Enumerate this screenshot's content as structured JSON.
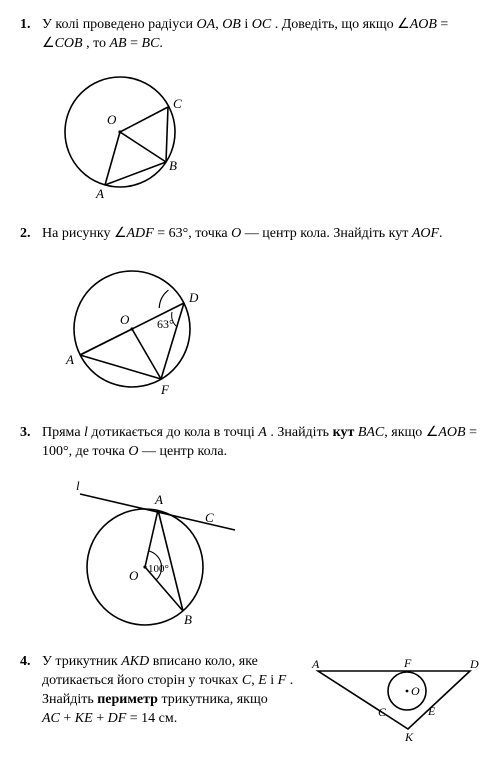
{
  "problems": [
    {
      "num": "1.",
      "text": "У колі проведено радіуси <i>OA</i>, <i>OB</i> і <i>OC</i> . Доведіть, що якщо ∠<i>AOB</i> = ∠<i>COB</i> , то <i>AB</i> = <i>BC</i>."
    },
    {
      "num": "2.",
      "text": "На рисунку ∠<i>ADF</i> = 63°, точка <i>O</i> — центр кола. Знайдіть кут <i>AOF</i>."
    },
    {
      "num": "3.",
      "text": "Пряма <i>l</i> дотикається до кола в точці <i>A</i> . Знайдіть <b>кут</b> <i>BAC</i>, якщо ∠<i>AOB</i> = 100°, де точка <i>O</i> — центр кола."
    },
    {
      "num": "4.",
      "text": "У трикутник <i>AKD</i> вписано коло, яке дотикається його сторін у точках <i>C</i>, <i>E</i> і <i>F</i> . Знайдіть <b>периметр</b> трикутника, якщо<br><i>AC</i> + <i>KE</i> + <i>DF</i> = 14 см."
    }
  ],
  "fig1": {
    "O": "O",
    "A": "A",
    "B": "B",
    "C": "C"
  },
  "fig2": {
    "O": "O",
    "A": "A",
    "D": "D",
    "F": "F",
    "angle": "63°"
  },
  "fig3": {
    "l": "l",
    "A": "A",
    "B": "B",
    "C": "C",
    "O": "O",
    "angle": "100°"
  },
  "fig4": {
    "A": "A",
    "K": "K",
    "D": "D",
    "C": "C",
    "E": "E",
    "F": "F",
    "O": "O"
  },
  "style": {
    "stroke": "#000000",
    "stroke_width": 1.5,
    "fill": "none",
    "font": "italic 13px 'Times New Roman', serif",
    "font_small": "12px 'Times New Roman', serif"
  }
}
